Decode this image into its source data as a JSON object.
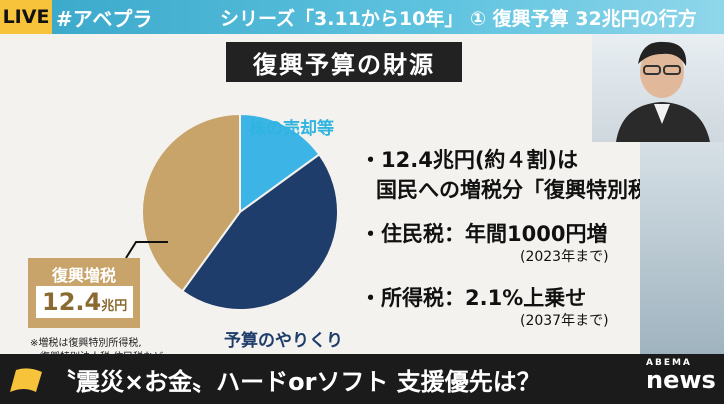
{
  "topbar": {
    "live": "LIVE",
    "hashtag": "#アベプラ",
    "series": "シリーズ「3.11から10年」 ① 復興予算 32兆円の行方"
  },
  "slide": {
    "title": "復興予算の財源",
    "pie_labels": {
      "stock": "株の売却等",
      "yarikuri": "予算のやりくり"
    },
    "tax_box": {
      "title": "復興増税",
      "value": "12.4",
      "unit": "兆円"
    },
    "notes": [
      "※増税は復興特別所得税,",
      "復興特別法人税,住民税など"
    ],
    "bullets": [
      {
        "main": "・12.4兆円(約４割)は",
        "cont": "国民への増税分「復興特別税」"
      },
      {
        "main": "・住民税：年間1000円増",
        "sub": "(2023年まで)"
      },
      {
        "main": "・所得税：2.1%上乗せ",
        "sub": "(2037年まで)"
      }
    ]
  },
  "chart_data": {
    "type": "pie",
    "slices": [
      {
        "label": "復興増税",
        "value": 40,
        "color": "#c9a46a"
      },
      {
        "label": "株の売却等",
        "value": 15,
        "color": "#3cb4e6"
      },
      {
        "label": "予算のやりくり",
        "value": 45,
        "color": "#1e3d6b"
      }
    ]
  },
  "bottombar": {
    "headline": "〝震災×お金〟ハードorソフト 支援優先は？",
    "logo_top": "ABEMA",
    "logo_main": "news"
  },
  "colors": {
    "accent_blue": "#3cb4e6",
    "navy": "#1e3d6b",
    "gold": "#c9a46a",
    "live_yellow": "#f6c33a"
  }
}
